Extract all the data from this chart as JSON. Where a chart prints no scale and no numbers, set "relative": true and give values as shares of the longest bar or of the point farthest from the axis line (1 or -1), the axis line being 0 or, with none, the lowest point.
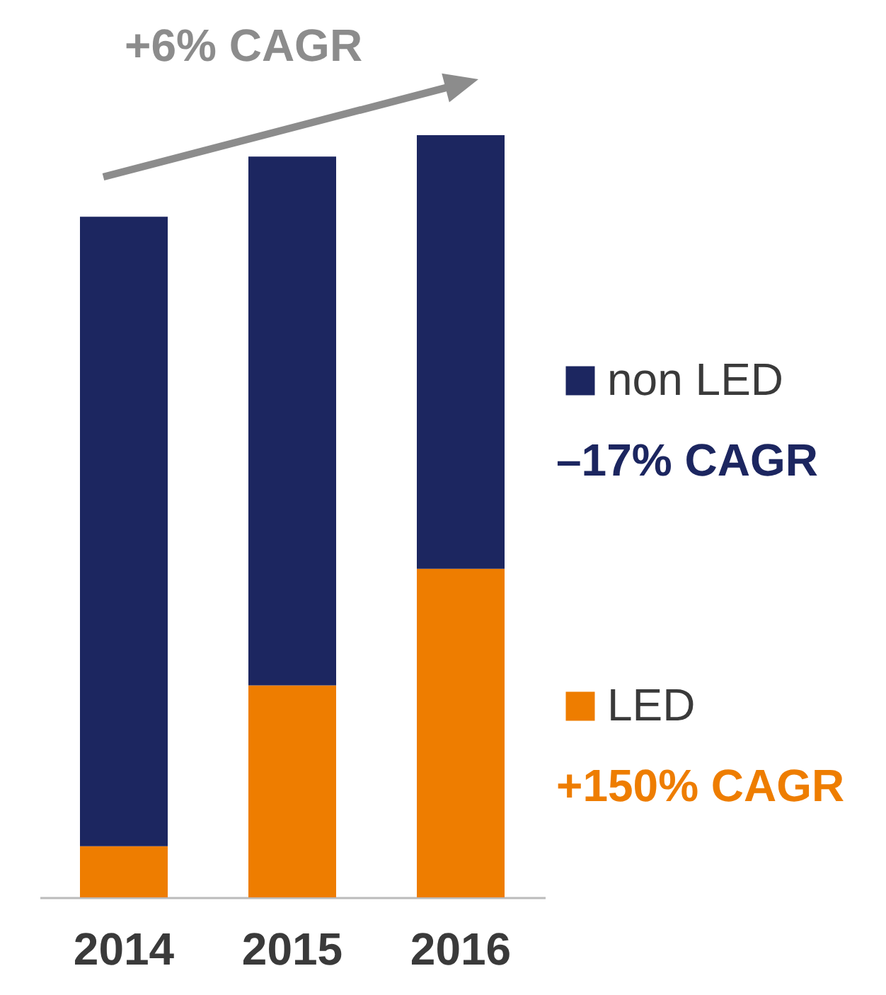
{
  "chart_data": {
    "type": "bar",
    "stacked": true,
    "relative": true,
    "legend": "right",
    "categories": [
      "2014",
      "2015",
      "2016"
    ],
    "series": [
      {
        "name": "LED",
        "color": "#ee7d00",
        "values": [
          0.067,
          0.278,
          0.431
        ]
      },
      {
        "name": "non LED",
        "color": "#1c2660",
        "values": [
          0.826,
          0.694,
          0.569
        ]
      }
    ],
    "annotations": [
      "+6% CAGR",
      "–17% CAGR",
      "+150% CAGR"
    ]
  }
}
